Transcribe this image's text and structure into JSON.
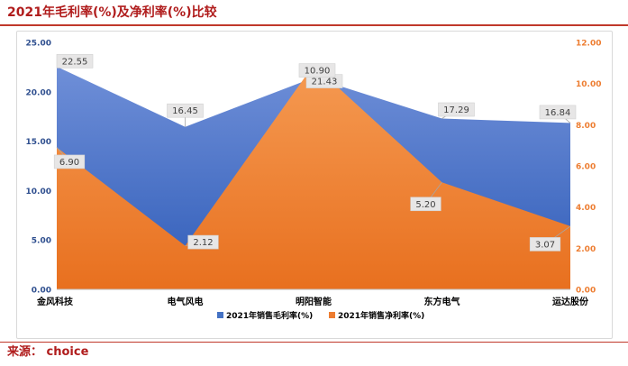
{
  "header": {
    "title": "2021年毛利率(%)及净利率(%)比较"
  },
  "footer": {
    "source": "来源：  choice"
  },
  "colors": {
    "gross": "#4472c4",
    "net": "#ed7d31",
    "title": "#b01c1c",
    "left_axis": "#2f4f8f",
    "right_axis": "#ed7d31"
  },
  "chart_data": {
    "type": "area",
    "title": "",
    "categories": [
      "金风科技",
      "电气风电",
      "明阳智能",
      "东方电气",
      "运达股份"
    ],
    "series": [
      {
        "name": "2021年销售毛利率(%)",
        "axis": "left",
        "values": [
          22.55,
          16.45,
          21.43,
          17.29,
          16.84
        ],
        "labels": [
          "22.55",
          "16.45",
          "21.43",
          "17.29",
          "16.84"
        ]
      },
      {
        "name": "2021年销售净利率(%)",
        "axis": "right",
        "values": [
          6.9,
          2.12,
          10.9,
          5.2,
          3.07
        ],
        "labels": [
          "6.90",
          "2.12",
          "10.90",
          "5.20",
          "3.07"
        ]
      }
    ],
    "y_left": {
      "min": 0,
      "max": 25,
      "ticks": [
        "0.00",
        "5.00",
        "10.00",
        "15.00",
        "20.00",
        "25.00"
      ]
    },
    "y_right": {
      "min": 0,
      "max": 12,
      "ticks": [
        "0.00",
        "2.00",
        "4.00",
        "6.00",
        "8.00",
        "10.00",
        "12.00"
      ]
    },
    "legend": "bottom",
    "grid": false
  }
}
